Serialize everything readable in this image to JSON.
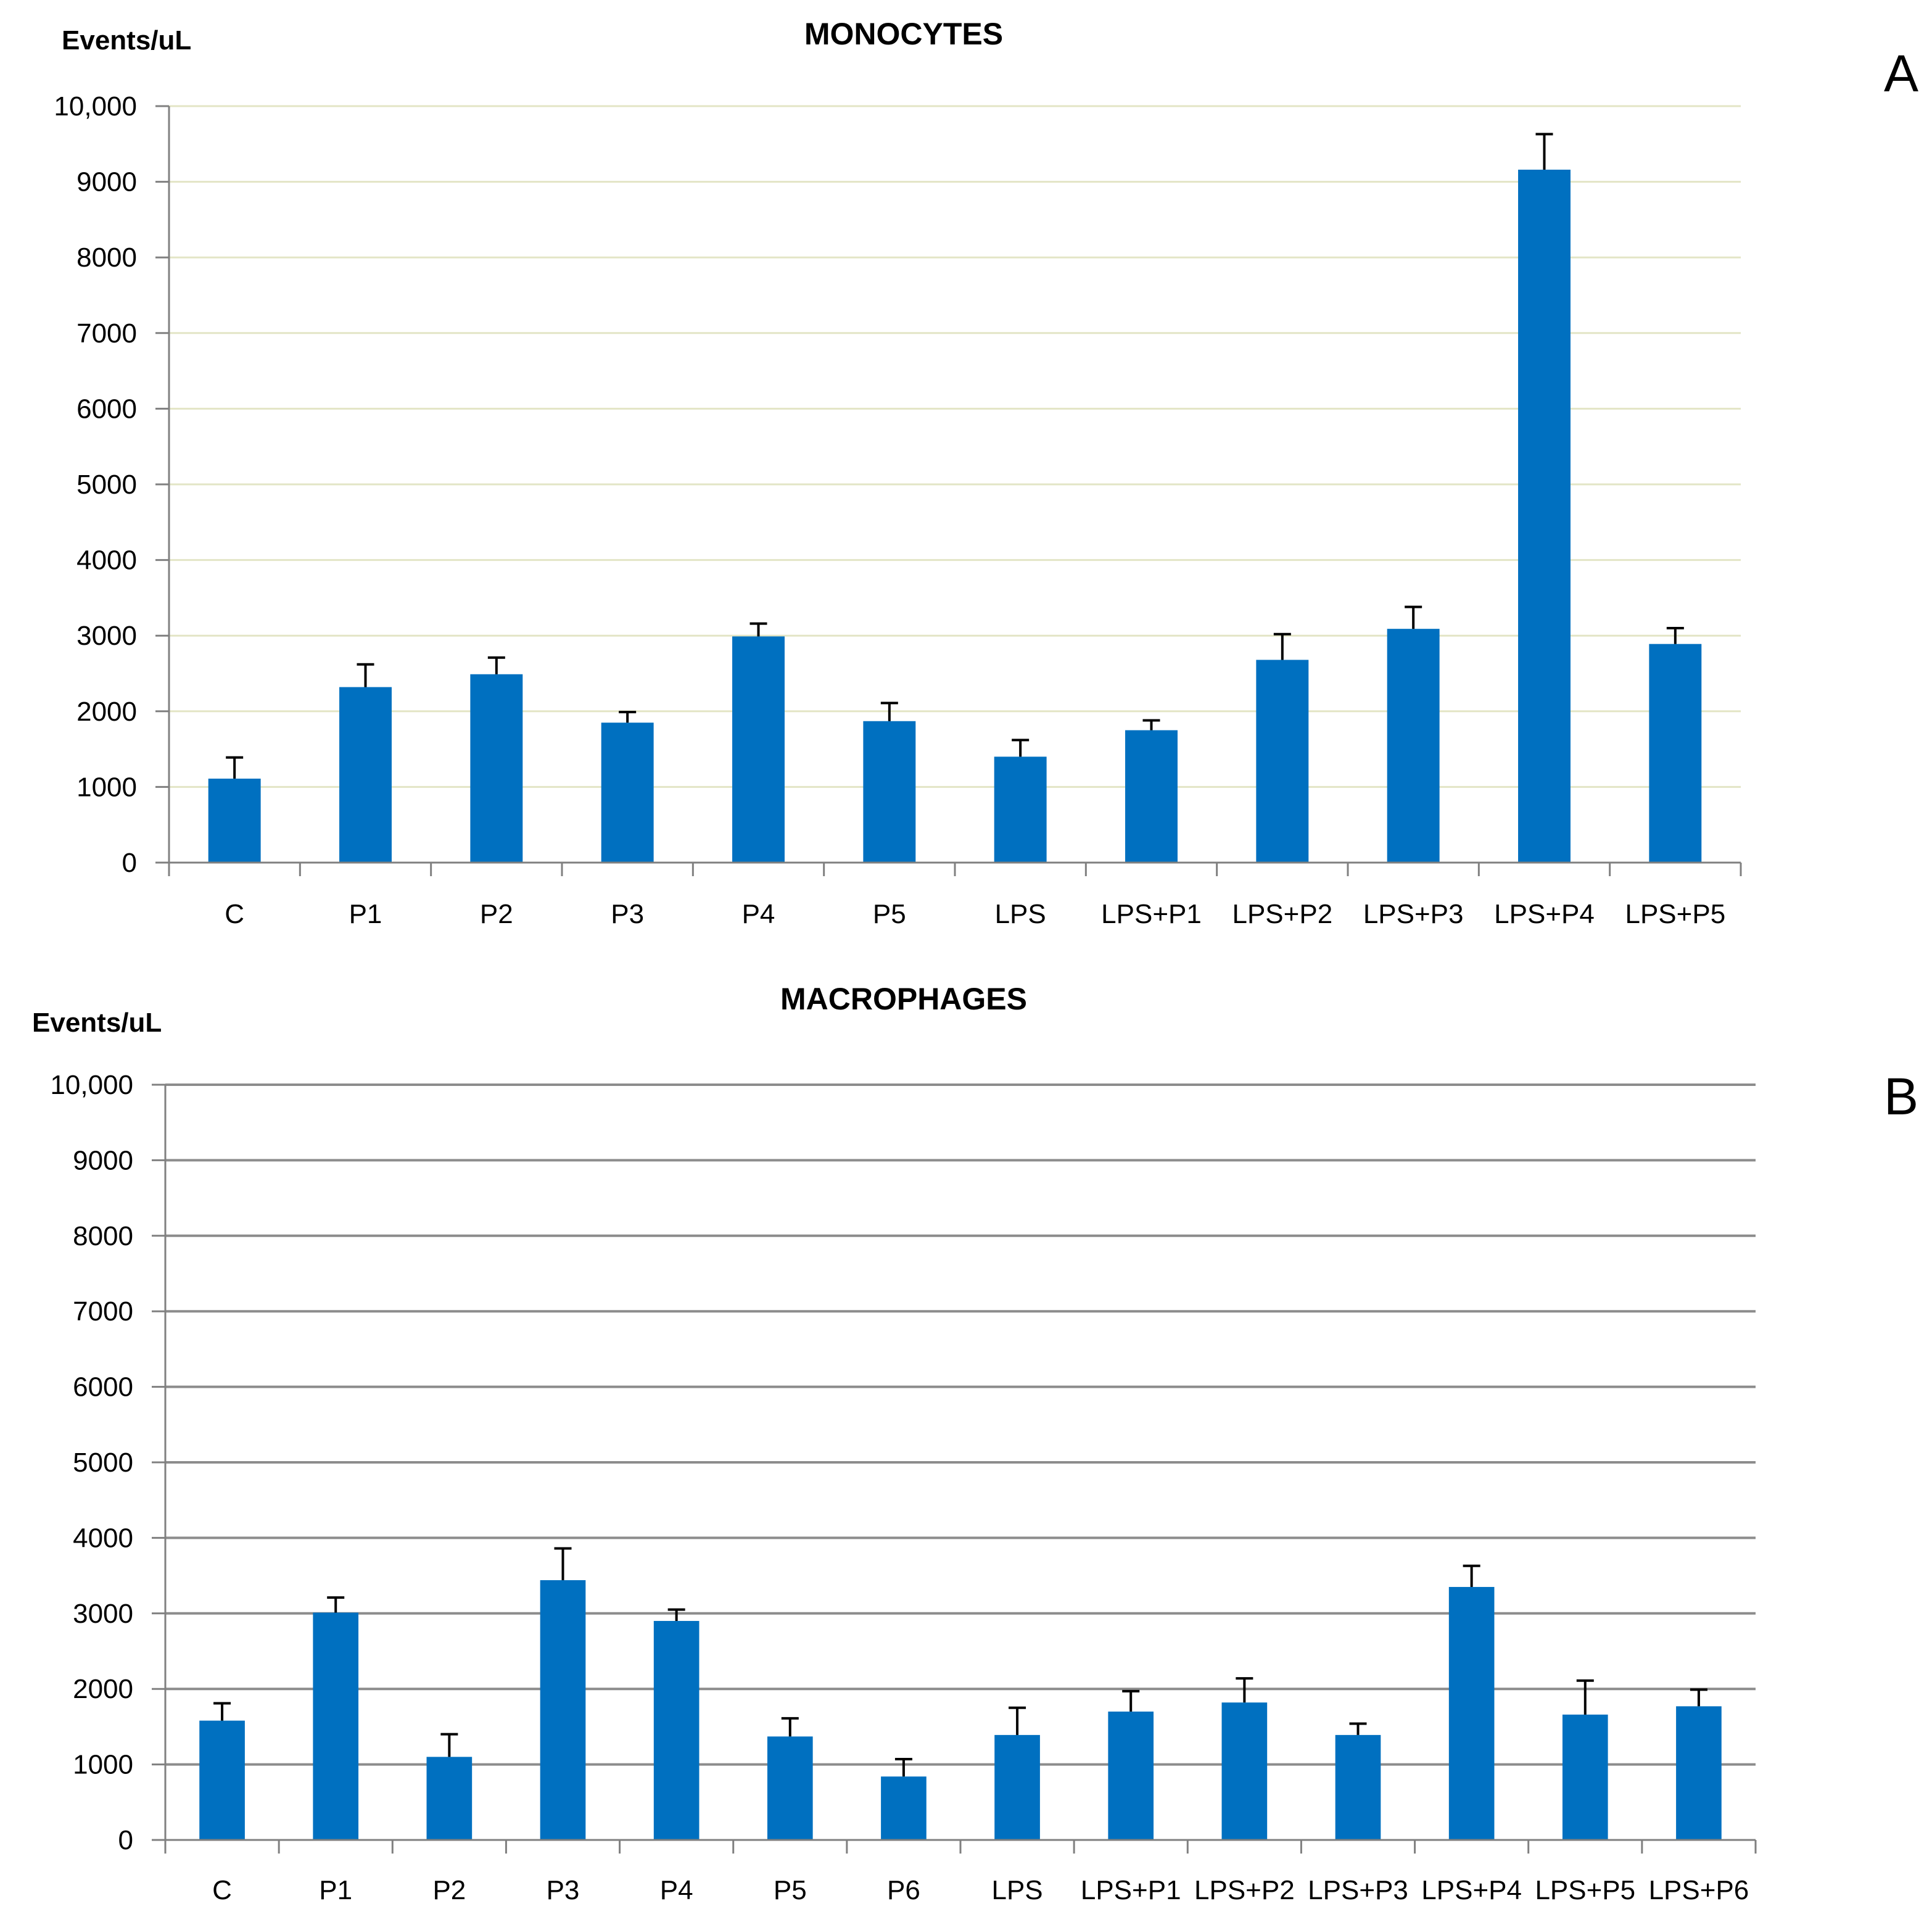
{
  "panels": [
    {
      "letter": "A",
      "unit_label": "Events/uL"
    },
    {
      "letter": "B",
      "unit_label": "Events/uL"
    }
  ],
  "colors": {
    "bar": "#0070C0",
    "error_bar": "#000000",
    "axis": "#808080",
    "grid_A": "#E3E5C6",
    "grid_B": "#8C8C8C"
  },
  "chart_data": [
    {
      "type": "bar",
      "title": "MONOCYTES",
      "ylabel": "Events/uL",
      "xlabel": "",
      "ylim": [
        0,
        10000
      ],
      "yticks": [
        0,
        1000,
        2000,
        3000,
        4000,
        5000,
        6000,
        7000,
        8000,
        9000,
        10000
      ],
      "ytick_labels": [
        "0",
        "1000",
        "2000",
        "3000",
        "4000",
        "5000",
        "6000",
        "7000",
        "8000",
        "9000",
        "10,000"
      ],
      "grid": true,
      "categories": [
        "C",
        "P1",
        "P2",
        "P3",
        "P4",
        "P5",
        "LPS",
        "LPS+P1",
        "LPS+P2",
        "LPS+P3",
        "LPS+P4",
        "LPS+P5"
      ],
      "values": [
        1110,
        2320,
        2490,
        1850,
        2990,
        1870,
        1400,
        1750,
        2680,
        3090,
        9160,
        2890
      ],
      "errors": [
        280,
        300,
        220,
        140,
        170,
        240,
        220,
        130,
        340,
        290,
        470,
        210
      ]
    },
    {
      "type": "bar",
      "title": "MACROPHAGES",
      "ylabel": "Events/uL",
      "xlabel": "",
      "ylim": [
        0,
        10000
      ],
      "yticks": [
        0,
        1000,
        2000,
        3000,
        4000,
        5000,
        6000,
        7000,
        8000,
        9000,
        10000
      ],
      "ytick_labels": [
        "0",
        "1000",
        "2000",
        "3000",
        "4000",
        "5000",
        "6000",
        "7000",
        "8000",
        "9000",
        "10,000"
      ],
      "grid": true,
      "categories": [
        "C",
        "P1",
        "P2",
        "P3",
        "P4",
        "P5",
        "P6",
        "LPS",
        "LPS+P1",
        "LPS+P2",
        "LPS+P3",
        "LPS+P4",
        "LPS+P5",
        "LPS+P6"
      ],
      "values": [
        1580,
        3010,
        1100,
        3440,
        2900,
        1370,
        840,
        1390,
        1700,
        1820,
        1390,
        3350,
        1660,
        1770
      ],
      "errors": [
        230,
        200,
        300,
        420,
        150,
        240,
        230,
        360,
        270,
        320,
        150,
        280,
        450,
        220
      ]
    }
  ]
}
